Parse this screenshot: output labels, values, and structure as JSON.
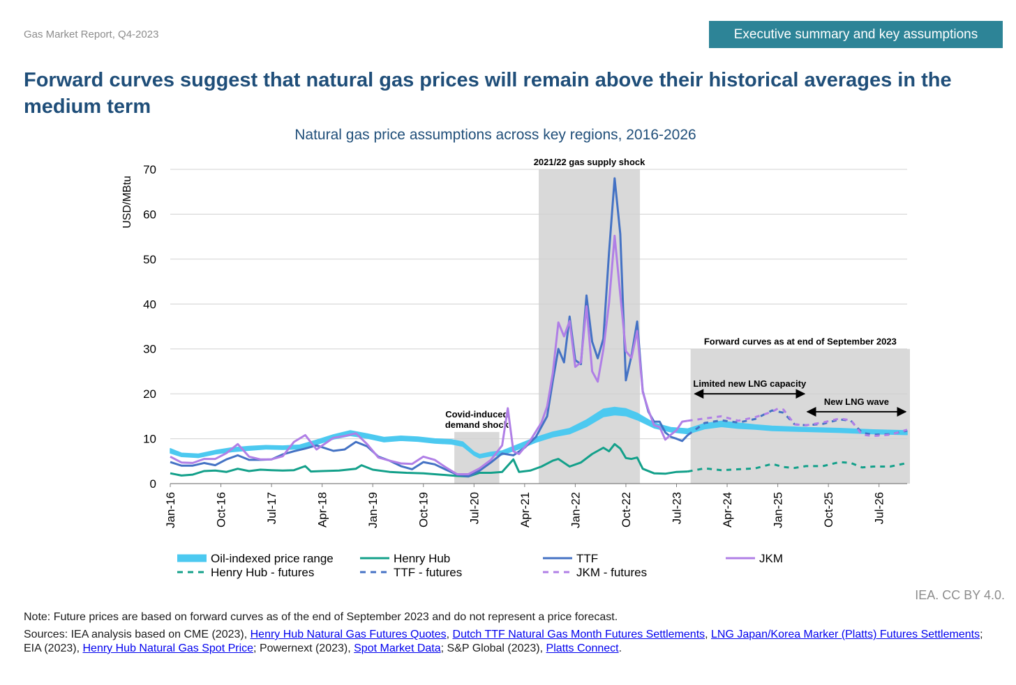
{
  "header": {
    "report_label": "Gas Market Report, Q4-2023",
    "section_tab": "Executive summary and key assumptions",
    "headline": "Forward curves suggest that natural gas prices will remain above their historical averages in the medium term"
  },
  "footer": {
    "credit": "IEA. CC BY 4.0.",
    "note": "Note: Future prices are based on forward curves as of the end of September 2023 and do not represent a price forecast.",
    "sources": {
      "prefix": "Sources: IEA analysis based on CME (2023), ",
      "link1": "Henry Hub Natural Gas Futures Quotes",
      "sep1": ", ",
      "link2": "Dutch TTF Natural Gas Month Futures Settlements",
      "sep2": ", ",
      "link3": "LNG Japan/Korea Marker (Platts) Futures Settlements",
      "text2": "; EIA (2023), ",
      "link4": "Henry Hub Natural Gas Spot Price",
      "text3": "; Powernext (2023), ",
      "link5": "Spot Market Data",
      "text4": "; S&P Global (2023), ",
      "link6": "Platts Connect",
      "suffix": "."
    }
  },
  "colors": {
    "oil": "#4cc9f0",
    "hh": "#13a08a",
    "ttf": "#4472c4",
    "jkm": "#b07fe6",
    "shade": "#d9d9d9",
    "grid": "#d0d0d0",
    "title": "#1f4e79"
  },
  "chart_data": {
    "type": "line",
    "title": "Natural gas price assumptions across key regions, 2016-2026",
    "ylabel": "USD/MBtu",
    "xlabel": "",
    "ylim": [
      0,
      70
    ],
    "yticks": [
      0,
      10,
      20,
      30,
      40,
      50,
      60,
      70
    ],
    "x_range": [
      "Jan-16",
      "Dec-26"
    ],
    "x_tick_labels": [
      "Jan-16",
      "Oct-16",
      "Jul-17",
      "Apr-18",
      "Jan-19",
      "Oct-19",
      "Jul-20",
      "Apr-21",
      "Jan-22",
      "Oct-22",
      "Jul-23",
      "Apr-24",
      "Jan-25",
      "Oct-25",
      "Jul-26"
    ],
    "grid": true,
    "legend": "bottom",
    "shaded_periods": [
      {
        "from": "Apr-20",
        "to": "Nov-20",
        "top": 11.5,
        "label": [
          "Covid-induced",
          "demand shock"
        ]
      },
      {
        "from": "Jul-21",
        "to": "Dec-22",
        "top": 70,
        "label": [
          "2021/22 gas supply shock"
        ]
      },
      {
        "from": "Oct-23",
        "to": "Dec-26",
        "top": 30,
        "label": [
          "Forward curves as at end of September 2023"
        ]
      }
    ],
    "annotations": [
      {
        "label": "Limited new LNG capacity",
        "from": "Oct-23",
        "to": "Jun-25",
        "y": 20
      },
      {
        "label": "New LNG wave",
        "from": "Jun-25",
        "to": "Dec-26",
        "y": 16
      }
    ],
    "series": [
      {
        "name": "Oil-indexed price range",
        "style": "band",
        "x": [
          "Jan-16",
          "Mar-16",
          "Jun-16",
          "Sep-16",
          "Dec-16",
          "Mar-17",
          "Jun-17",
          "Sep-17",
          "Dec-17",
          "Mar-18",
          "Jun-18",
          "Sep-18",
          "Dec-18",
          "Mar-19",
          "Jun-19",
          "Sep-19",
          "Dec-19",
          "Mar-20",
          "May-20",
          "Jul-20",
          "Aug-20",
          "Oct-20",
          "Dec-20",
          "Mar-21",
          "Jun-21",
          "Sep-21",
          "Dec-21",
          "Mar-22",
          "Jun-22",
          "Aug-22",
          "Oct-22",
          "Dec-22",
          "Mar-23",
          "Jun-23",
          "Sep-23",
          "Dec-23",
          "Mar-24",
          "Jun-24",
          "Sep-24",
          "Dec-24",
          "Jun-25",
          "Dec-25",
          "Jun-26",
          "Dec-26"
        ],
        "low": [
          6.8,
          6.0,
          5.8,
          6.6,
          7.1,
          7.4,
          7.7,
          7.6,
          7.7,
          8.7,
          9.9,
          10.7,
          10.1,
          9.3,
          9.6,
          9.4,
          9.0,
          8.8,
          8.3,
          6.3,
          5.7,
          6.2,
          6.4,
          7.7,
          9.2,
          10.4,
          11.1,
          12.7,
          14.9,
          15.3,
          15.1,
          14.2,
          12.4,
          11.5,
          11.1,
          12.2,
          12.7,
          12.3,
          12.1,
          11.8,
          11.6,
          11.4,
          11.1,
          10.9
        ],
        "high": [
          7.8,
          6.8,
          6.6,
          7.4,
          8.0,
          8.3,
          8.5,
          8.4,
          8.6,
          9.7,
          10.9,
          11.8,
          11.1,
          10.3,
          10.6,
          10.4,
          10.0,
          9.8,
          9.3,
          7.1,
          6.5,
          7.0,
          7.3,
          8.8,
          10.3,
          11.5,
          12.3,
          14.2,
          16.6,
          17.0,
          16.7,
          15.7,
          13.5,
          12.5,
          12.2,
          13.4,
          13.9,
          13.5,
          13.1,
          12.8,
          12.5,
          12.3,
          12.0,
          11.8
        ]
      },
      {
        "name": "Henry Hub",
        "style": "solid",
        "x": [
          "Jan-16",
          "Mar-16",
          "May-16",
          "Jul-16",
          "Sep-16",
          "Nov-16",
          "Jan-17",
          "Mar-17",
          "May-17",
          "Jul-17",
          "Sep-17",
          "Nov-17",
          "Jan-18",
          "Feb-18",
          "Apr-18",
          "Jul-18",
          "Oct-18",
          "Nov-18",
          "Jan-19",
          "Apr-19",
          "Jul-19",
          "Oct-19",
          "Jan-20",
          "Apr-20",
          "Jun-20",
          "Aug-20",
          "Oct-20",
          "Dec-20",
          "Feb-21",
          "Mar-21",
          "May-21",
          "Jul-21",
          "Sep-21",
          "Oct-21",
          "Dec-21",
          "Feb-22",
          "Apr-22",
          "Jun-22",
          "Jul-22",
          "Aug-22",
          "Sep-22",
          "Oct-22",
          "Nov-22",
          "Dec-22",
          "Jan-23",
          "Mar-23",
          "May-23",
          "Jul-23",
          "Sep-23"
        ],
        "values": [
          2.3,
          1.8,
          2.0,
          2.8,
          2.9,
          2.6,
          3.3,
          2.8,
          3.1,
          3.0,
          2.9,
          3.0,
          3.9,
          2.7,
          2.8,
          2.9,
          3.3,
          4.1,
          3.1,
          2.6,
          2.4,
          2.3,
          2.0,
          1.7,
          1.6,
          2.4,
          2.4,
          2.6,
          5.4,
          2.6,
          2.9,
          3.8,
          5.1,
          5.5,
          3.8,
          4.7,
          6.6,
          8.0,
          7.2,
          8.8,
          7.8,
          5.7,
          5.5,
          5.8,
          3.3,
          2.3,
          2.2,
          2.6,
          2.7
        ]
      },
      {
        "name": "Henry Hub - futures",
        "style": "dashed",
        "x": [
          "Sep-23",
          "Dec-23",
          "Mar-24",
          "Jun-24",
          "Sep-24",
          "Dec-24",
          "Feb-25",
          "Apr-25",
          "Jun-25",
          "Sep-25",
          "Dec-25",
          "Feb-26",
          "Apr-26",
          "Jun-26",
          "Sep-26",
          "Dec-26"
        ],
        "values": [
          2.7,
          3.4,
          3.0,
          3.2,
          3.4,
          4.4,
          3.7,
          3.5,
          3.9,
          3.9,
          4.8,
          4.6,
          3.6,
          3.8,
          3.8,
          4.6
        ]
      },
      {
        "name": "TTF",
        "style": "solid",
        "x": [
          "Jan-16",
          "Mar-16",
          "May-16",
          "Jul-16",
          "Sep-16",
          "Nov-16",
          "Jan-17",
          "Mar-17",
          "May-17",
          "Jul-17",
          "Sep-17",
          "Nov-17",
          "Jan-18",
          "Mar-18",
          "Jun-18",
          "Aug-18",
          "Oct-18",
          "Dec-18",
          "Feb-19",
          "Apr-19",
          "Jun-19",
          "Aug-19",
          "Oct-19",
          "Dec-19",
          "Feb-20",
          "Apr-20",
          "Jun-20",
          "Aug-20",
          "Oct-20",
          "Dec-20",
          "Feb-21",
          "Apr-21",
          "Jun-21",
          "Aug-21",
          "Sep-21",
          "Oct-21",
          "Nov-21",
          "Dec-21",
          "Jan-22",
          "Feb-22",
          "Mar-22",
          "Apr-22",
          "May-22",
          "Jun-22",
          "Jul-22",
          "Aug-22",
          "Sep-22",
          "Oct-22",
          "Nov-22",
          "Dec-22",
          "Jan-23",
          "Feb-23",
          "Mar-23",
          "Apr-23",
          "May-23",
          "Jun-23",
          "Jul-23",
          "Aug-23",
          "Sep-23"
        ],
        "values": [
          4.8,
          4.0,
          4.0,
          4.6,
          4.1,
          5.4,
          6.3,
          5.3,
          5.3,
          5.4,
          6.5,
          7.2,
          7.8,
          8.5,
          7.3,
          7.6,
          9.3,
          8.3,
          6.0,
          5.1,
          3.9,
          3.2,
          4.8,
          4.3,
          3.1,
          2.0,
          1.6,
          2.9,
          4.7,
          6.7,
          6.3,
          8.0,
          10.4,
          15.0,
          22.9,
          30.0,
          27.0,
          37.2,
          27.5,
          26.6,
          41.9,
          31.6,
          27.9,
          32.3,
          51.5,
          68.0,
          55.6,
          23.0,
          28.5,
          36.1,
          20.6,
          16.0,
          13.8,
          13.8,
          11.4,
          10.4,
          10.0,
          9.5,
          10.8
        ]
      },
      {
        "name": "TTF - futures",
        "style": "dashed",
        "x": [
          "Sep-23",
          "Dec-23",
          "Mar-24",
          "Jun-24",
          "Sep-24",
          "Dec-24",
          "Feb-25",
          "Apr-25",
          "Jun-25",
          "Sep-25",
          "Dec-25",
          "Feb-26",
          "Apr-26",
          "Jun-26",
          "Sep-26",
          "Dec-26"
        ],
        "values": [
          10.8,
          13.5,
          14.1,
          13.6,
          14.4,
          16.3,
          15.8,
          13.2,
          13.0,
          13.3,
          14.3,
          14.0,
          11.3,
          10.9,
          11.0,
          11.8
        ]
      },
      {
        "name": "JKM",
        "style": "solid",
        "x": [
          "Jan-16",
          "Mar-16",
          "May-16",
          "Jul-16",
          "Sep-16",
          "Nov-16",
          "Jan-17",
          "Mar-17",
          "May-17",
          "Jul-17",
          "Sep-17",
          "Nov-17",
          "Jan-18",
          "Mar-18",
          "Jun-18",
          "Aug-18",
          "Oct-18",
          "Dec-18",
          "Feb-19",
          "Apr-19",
          "Jun-19",
          "Aug-19",
          "Oct-19",
          "Dec-19",
          "Feb-20",
          "Apr-20",
          "Jun-20",
          "Aug-20",
          "Oct-20",
          "Dec-20",
          "Jan-21",
          "Feb-21",
          "Mar-21",
          "May-21",
          "Jul-21",
          "Aug-21",
          "Sep-21",
          "Oct-21",
          "Nov-21",
          "Dec-21",
          "Jan-22",
          "Feb-22",
          "Mar-22",
          "Apr-22",
          "May-22",
          "Jun-22",
          "Jul-22",
          "Aug-22",
          "Sep-22",
          "Oct-22",
          "Nov-22",
          "Dec-22",
          "Jan-23",
          "Feb-23",
          "Mar-23",
          "Apr-23",
          "May-23",
          "Jun-23",
          "Jul-23",
          "Aug-23",
          "Sep-23"
        ],
        "values": [
          6.0,
          4.7,
          4.6,
          5.5,
          5.5,
          6.8,
          8.8,
          6.0,
          5.4,
          5.4,
          6.1,
          9.3,
          10.8,
          7.6,
          10.2,
          10.6,
          11.2,
          8.8,
          5.8,
          5.1,
          4.5,
          4.4,
          6.0,
          5.3,
          3.6,
          2.1,
          2.1,
          3.4,
          5.3,
          8.5,
          16.8,
          7.2,
          6.6,
          9.6,
          13.6,
          17.2,
          24.6,
          35.9,
          32.8,
          36.2,
          26.0,
          27.0,
          39.5,
          25.0,
          22.7,
          29.9,
          40.2,
          55.2,
          42.1,
          29.5,
          28.0,
          34.0,
          20.4,
          16.4,
          13.0,
          12.6,
          9.8,
          10.9,
          11.9,
          13.8,
          14.0
        ]
      },
      {
        "name": "JKM - futures",
        "style": "dashed",
        "x": [
          "Sep-23",
          "Dec-23",
          "Mar-24",
          "Jun-24",
          "Sep-24",
          "Dec-24",
          "Jan-25",
          "Feb-25",
          "Apr-25",
          "Jun-25",
          "Sep-25",
          "Dec-25",
          "Feb-26",
          "Apr-26",
          "Jun-26",
          "Sep-26",
          "Dec-26"
        ],
        "values": [
          14.0,
          14.5,
          15.0,
          14.0,
          14.8,
          16.0,
          16.7,
          16.5,
          13.2,
          13.0,
          13.6,
          14.5,
          14.1,
          10.9,
          10.6,
          10.9,
          12.0
        ]
      }
    ]
  }
}
